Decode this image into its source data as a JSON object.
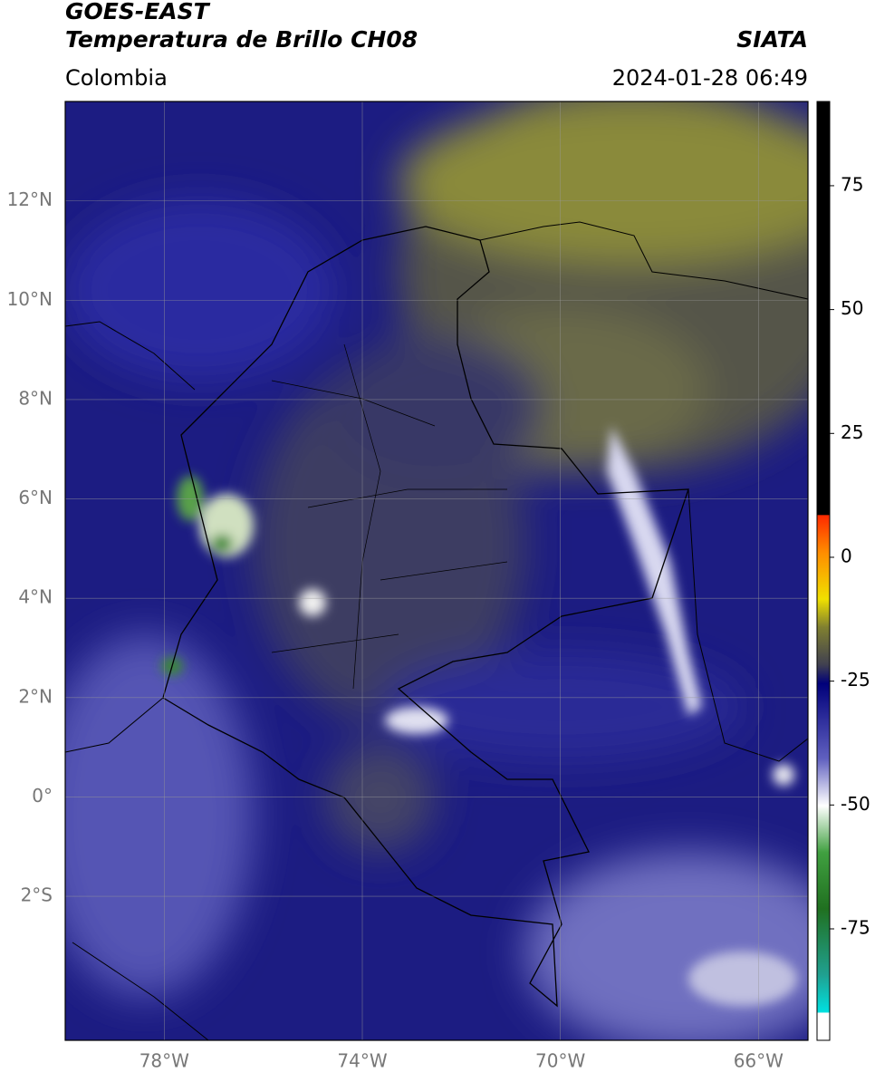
{
  "header": {
    "title": "GOES-EAST",
    "subtitle": "Temperatura de Brillo CH08",
    "source": "SIATA",
    "region": "Colombia",
    "datetime": "2024-01-28 06:49"
  },
  "map": {
    "xlim": [
      -80,
      -65
    ],
    "ylim": [
      -4.9,
      14
    ],
    "xticks": [
      {
        "value": -78,
        "label": "78°W"
      },
      {
        "value": -74,
        "label": "74°W"
      },
      {
        "value": -70,
        "label": "70°W"
      },
      {
        "value": -66,
        "label": "66°W"
      }
    ],
    "yticks": [
      {
        "value": 12,
        "label": "12°N"
      },
      {
        "value": 10,
        "label": "10°N"
      },
      {
        "value": 8,
        "label": "8°N"
      },
      {
        "value": 6,
        "label": "6°N"
      },
      {
        "value": 4,
        "label": "4°N"
      },
      {
        "value": 2,
        "label": "2°N"
      },
      {
        "value": 0,
        "label": "0°"
      },
      {
        "value": -2,
        "label": "2°S"
      }
    ]
  },
  "colorbar": {
    "lim": [
      -97.5,
      92
    ],
    "ticks": [
      75,
      50,
      25,
      0,
      -25,
      -50,
      -75
    ]
  }
}
